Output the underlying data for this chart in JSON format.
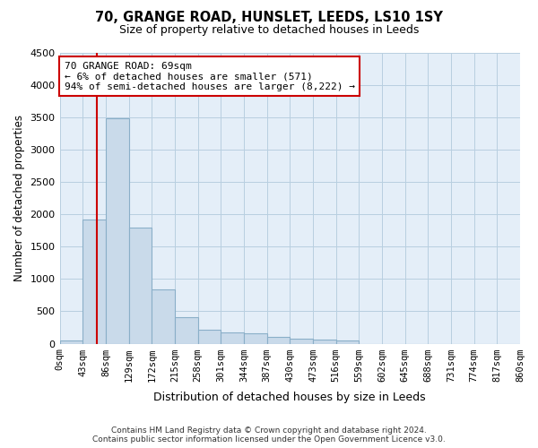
{
  "title": "70, GRANGE ROAD, HUNSLET, LEEDS, LS10 1SY",
  "subtitle": "Size of property relative to detached houses in Leeds",
  "xlabel": "Distribution of detached houses by size in Leeds",
  "ylabel": "Number of detached properties",
  "bar_color": "#c9daea",
  "bar_edgecolor": "#8aafc8",
  "background_color": "#ffffff",
  "plot_bg_color": "#e4eef8",
  "grid_color": "#b8cfe0",
  "annotation_text": "70 GRANGE ROAD: 69sqm\n← 6% of detached houses are smaller (571)\n94% of semi-detached houses are larger (8,222) →",
  "annotation_box_facecolor": "#ffffff",
  "annotation_box_edgecolor": "#cc0000",
  "vline_x": 69,
  "vline_color": "#cc0000",
  "footer_text": "Contains HM Land Registry data © Crown copyright and database right 2024.\nContains public sector information licensed under the Open Government Licence v3.0.",
  "bin_edges": [
    0,
    43,
    86,
    129,
    172,
    215,
    258,
    301,
    344,
    387,
    430,
    473,
    516,
    559,
    602,
    645,
    688,
    731,
    774,
    817,
    860
  ],
  "bar_heights": [
    50,
    1920,
    3490,
    1790,
    840,
    410,
    220,
    170,
    160,
    110,
    80,
    60,
    50,
    0,
    0,
    0,
    0,
    0,
    0,
    0
  ],
  "ylim": [
    0,
    4500
  ],
  "yticks": [
    0,
    500,
    1000,
    1500,
    2000,
    2500,
    3000,
    3500,
    4000,
    4500
  ]
}
